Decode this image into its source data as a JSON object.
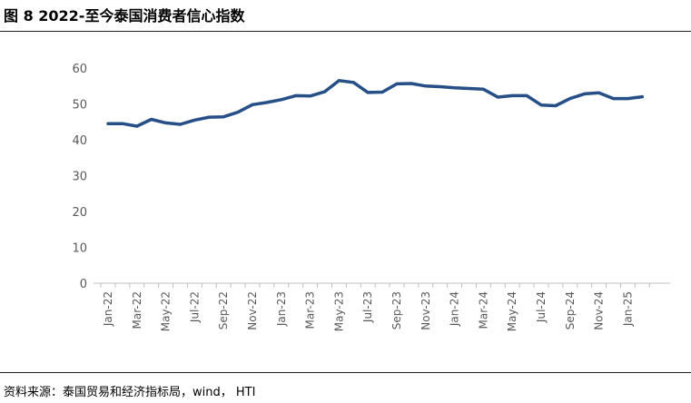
{
  "figure": {
    "title": "图 8  2022-至今泰国消费者信心指数",
    "source": "资料来源：泰国贸易和经济指标局，wind， HTI"
  },
  "colors": {
    "line": "#264F87",
    "axis": "#BFBFBF",
    "text": "#595959"
  },
  "chart_data": {
    "type": "line",
    "title": "",
    "xlabel": "",
    "ylabel": "",
    "ylim": [
      0,
      60
    ],
    "yticks": [
      0,
      10,
      20,
      30,
      40,
      50,
      60
    ],
    "grid": false,
    "legend": "none",
    "x": [
      "Jan-22",
      "Feb-22",
      "Mar-22",
      "Apr-22",
      "May-22",
      "Jun-22",
      "Jul-22",
      "Aug-22",
      "Sep-22",
      "Oct-22",
      "Nov-22",
      "Dec-22",
      "Jan-23",
      "Feb-23",
      "Mar-23",
      "Apr-23",
      "May-23",
      "Jun-23",
      "Jul-23",
      "Aug-23",
      "Sep-23",
      "Oct-23",
      "Nov-23",
      "Dec-23",
      "Jan-24",
      "Feb-24",
      "Mar-24",
      "Apr-24",
      "May-24",
      "Jun-24",
      "Jul-24",
      "Aug-24",
      "Sep-24",
      "Oct-24",
      "Nov-24",
      "Dec-24",
      "Jan-25",
      "Feb-25"
    ],
    "xtick_labels": [
      "Jan-22",
      "Mar-22",
      "May-22",
      "Jul-22",
      "Sep-22",
      "Nov-22",
      "Jan-23",
      "Mar-23",
      "May-23",
      "Jul-23",
      "Sep-23",
      "Nov-23",
      "Jan-24",
      "Mar-24",
      "May-24",
      "Jul-24",
      "Sep-24",
      "Nov-24",
      "Jan-25"
    ],
    "series": [
      {
        "name": "泰国消费者信心指数",
        "values": [
          44.5,
          44.5,
          43.8,
          45.7,
          44.7,
          44.3,
          45.5,
          46.3,
          46.4,
          47.7,
          49.8,
          50.4,
          51.2,
          52.3,
          52.2,
          53.4,
          56.5,
          56.0,
          53.2,
          53.3,
          55.6,
          55.7,
          55.0,
          54.8,
          54.5,
          54.3,
          54.1,
          51.9,
          52.3,
          52.3,
          49.7,
          49.5,
          51.5,
          52.8,
          53.1,
          51.5,
          51.5,
          52.0
        ]
      }
    ]
  }
}
